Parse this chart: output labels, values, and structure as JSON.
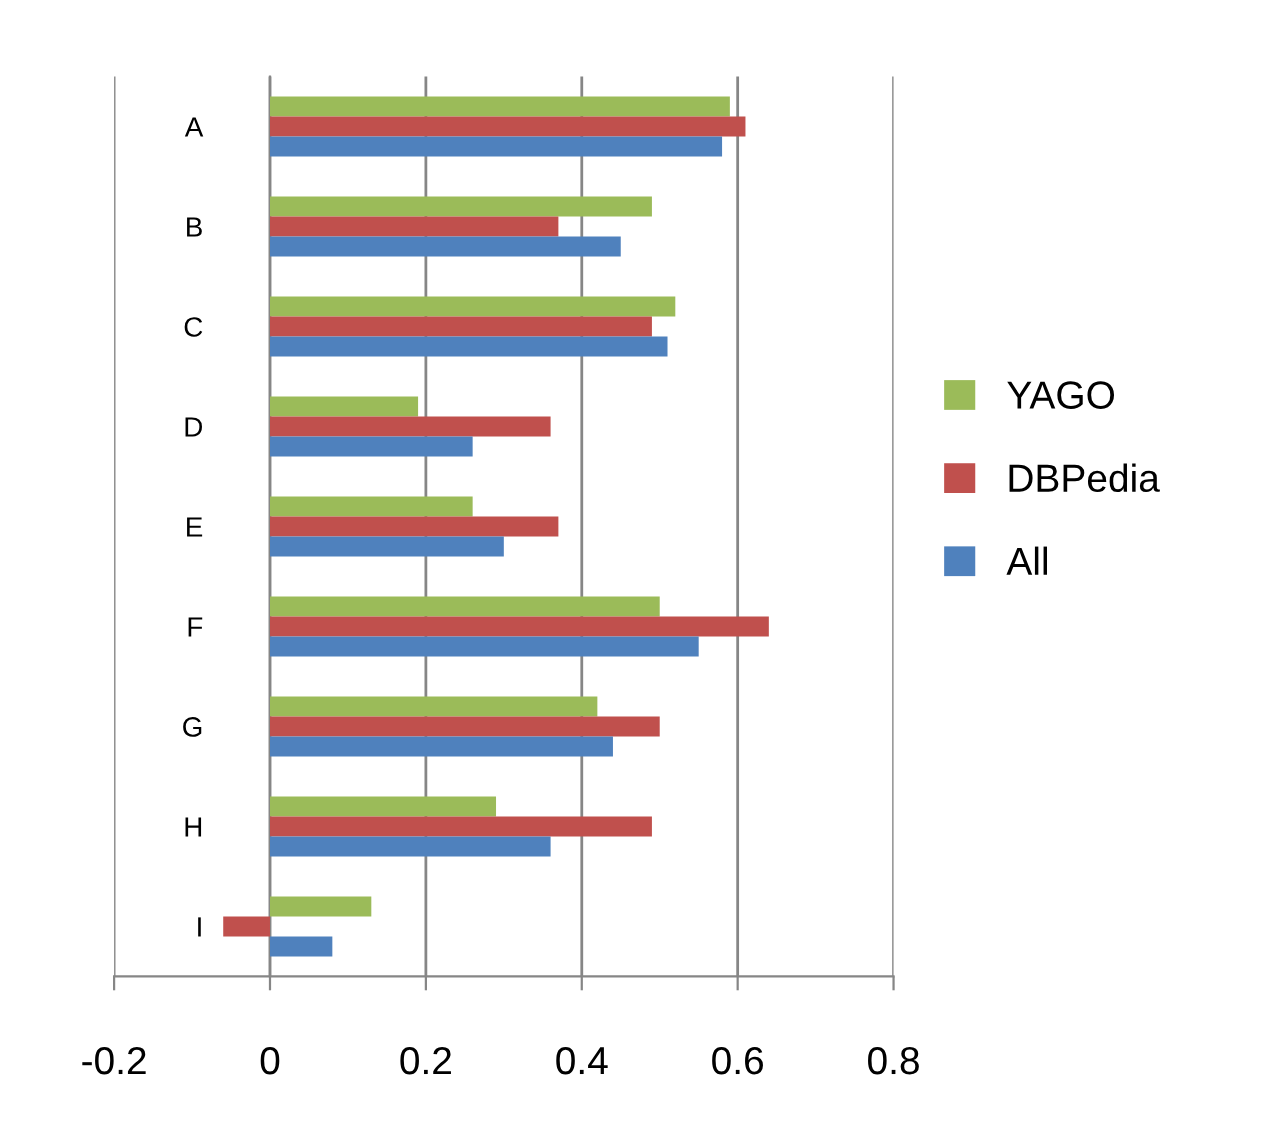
{
  "chart_data": {
    "type": "bar",
    "orientation": "horizontal",
    "categories": [
      "A",
      "B",
      "C",
      "D",
      "E",
      "F",
      "G",
      "H",
      "I"
    ],
    "series": [
      {
        "name": "YAGO",
        "color": "#9bbb59",
        "values": [
          0.59,
          0.49,
          0.52,
          0.19,
          0.26,
          0.5,
          0.42,
          0.29,
          0.13
        ]
      },
      {
        "name": "DBPedia",
        "color": "#c0504d",
        "values": [
          0.61,
          0.37,
          0.49,
          0.36,
          0.37,
          0.64,
          0.5,
          0.49,
          -0.06
        ]
      },
      {
        "name": "All",
        "color": "#4f81bd",
        "values": [
          0.58,
          0.45,
          0.51,
          0.26,
          0.3,
          0.55,
          0.44,
          0.36,
          0.08
        ]
      }
    ],
    "xlim": [
      -0.2,
      0.8
    ],
    "xticks": [
      -0.2,
      0,
      0.2,
      0.4,
      0.6,
      0.8
    ],
    "grid": "x",
    "legend": "right"
  }
}
